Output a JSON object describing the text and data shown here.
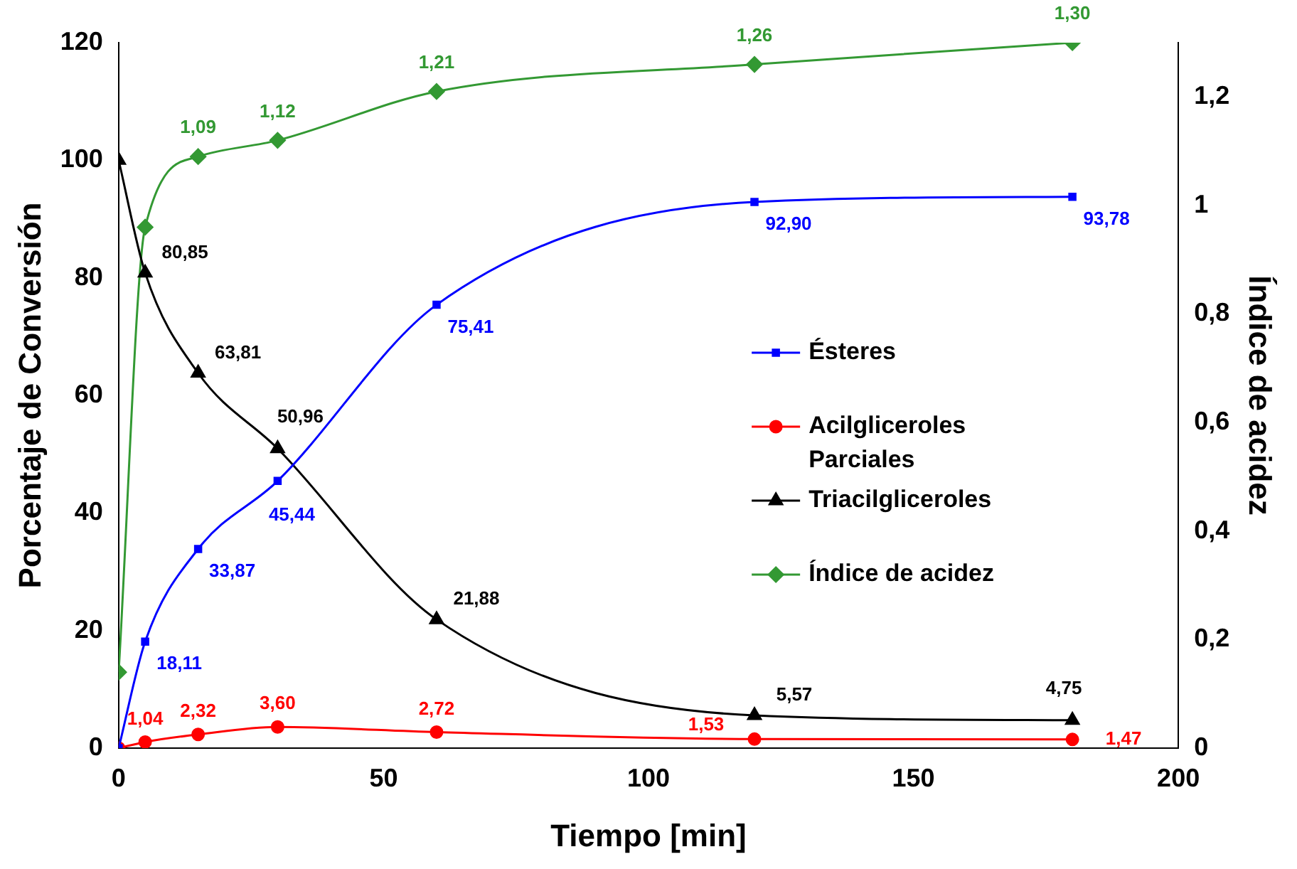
{
  "chart_data": {
    "type": "line",
    "xlabel": "Tiempo [min]",
    "ylabel": "Porcentaje de Conversión",
    "y2label": "Índice de acidez",
    "x": [
      0,
      5,
      15,
      30,
      60,
      120,
      180
    ],
    "xlim": [
      0,
      200
    ],
    "xticks": [
      0,
      50,
      100,
      150,
      200
    ],
    "ylim": [
      0,
      120
    ],
    "yticks": [
      0,
      20,
      40,
      60,
      80,
      100,
      120
    ],
    "y2lim": [
      0,
      1.3
    ],
    "y2ticks": [
      {
        "value": 0,
        "label": "0"
      },
      {
        "value": 0.2,
        "label": "0,2"
      },
      {
        "value": 0.4,
        "label": "0,4"
      },
      {
        "value": 0.6,
        "label": "0,6"
      },
      {
        "value": 0.8,
        "label": "0,8"
      },
      {
        "value": 1,
        "label": "1"
      },
      {
        "value": 1.2,
        "label": "1,2"
      }
    ],
    "grid": false,
    "legend": "right",
    "line_style": "solid",
    "series": [
      {
        "name": "Ésteres",
        "color": "#0000ff",
        "marker": "square",
        "values": [
          0,
          18.11,
          33.87,
          45.44,
          75.41,
          92.9,
          93.78
        ],
        "value_labels": [
          null,
          "18,11",
          "33,87",
          "45,44",
          "75,41",
          "92,90",
          "93,78"
        ]
      },
      {
        "name": "Acilgliceroles Parciales",
        "color": "#ff0000",
        "marker": "circle",
        "values": [
          0,
          1.04,
          2.32,
          3.6,
          2.72,
          1.53,
          1.47
        ],
        "value_labels": [
          null,
          "1,04",
          "2,32",
          "3,60",
          "2,72",
          "1,53",
          "1,47"
        ]
      },
      {
        "name": "Triacilgliceroles",
        "color": "#000000",
        "marker": "triangle",
        "values": [
          100,
          80.85,
          63.81,
          50.96,
          21.88,
          5.57,
          4.75
        ],
        "value_labels": [
          null,
          "80,85",
          "63,81",
          "50,96",
          "21,88",
          "5,57",
          "4,75"
        ]
      },
      {
        "name": "Índice de acidez",
        "color": "#339933",
        "marker": "diamond",
        "axis": "y2",
        "values": [
          0.14,
          0.96,
          1.09,
          1.12,
          1.21,
          1.26,
          1.3
        ],
        "value_labels": [
          null,
          null,
          "1,09",
          "1,12",
          "1,21",
          "1,26",
          "1,30"
        ]
      }
    ]
  }
}
